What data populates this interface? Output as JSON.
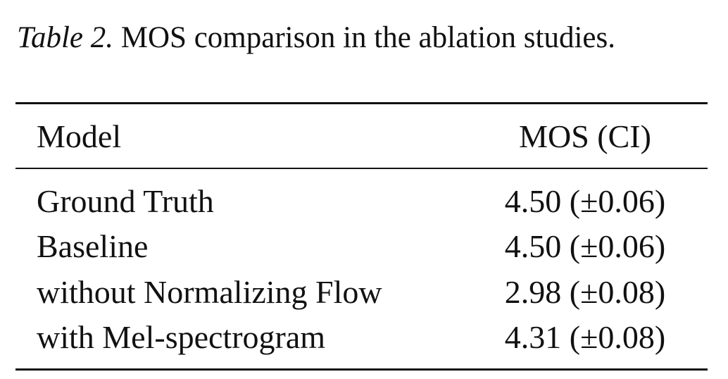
{
  "caption": {
    "label": "Table 2.",
    "text": "MOS comparison in the ablation studies."
  },
  "table": {
    "header": [
      "Model",
      "MOS (CI)"
    ],
    "rows": [
      [
        "Ground Truth",
        "4.50 (±0.06)"
      ],
      [
        "Baseline",
        "4.50 (±0.06)"
      ],
      [
        "without Normalizing Flow",
        "2.98 (±0.08)"
      ],
      [
        "with Mel-spectrogram",
        "4.31 (±0.08)"
      ]
    ]
  }
}
